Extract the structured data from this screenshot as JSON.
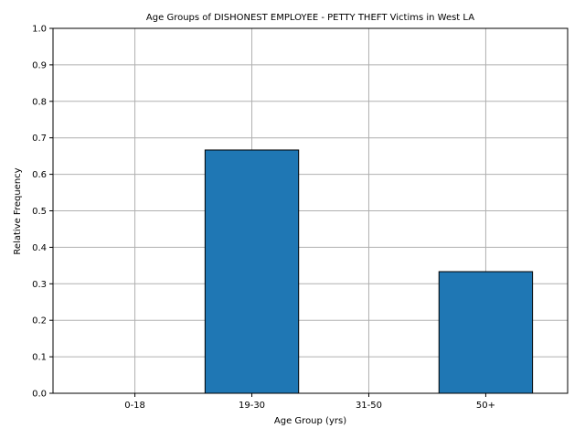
{
  "chart_data": {
    "type": "bar",
    "title": "Age Groups of DISHONEST EMPLOYEE - PETTY THEFT Victims in West LA",
    "xlabel": "Age Group (yrs)",
    "ylabel": "Relative Frequency",
    "categories": [
      "0-18",
      "19-30",
      "31-50",
      "50+"
    ],
    "values": [
      0.0,
      0.6667,
      0.0,
      0.3333
    ],
    "ylim": [
      0,
      1
    ],
    "yticks": [
      "0.0",
      "0.1",
      "0.2",
      "0.3",
      "0.4",
      "0.5",
      "0.6",
      "0.7",
      "0.8",
      "0.9",
      "1.0"
    ],
    "grid": true,
    "bar_color": "#1f77b4",
    "edge_color": "#000000"
  }
}
